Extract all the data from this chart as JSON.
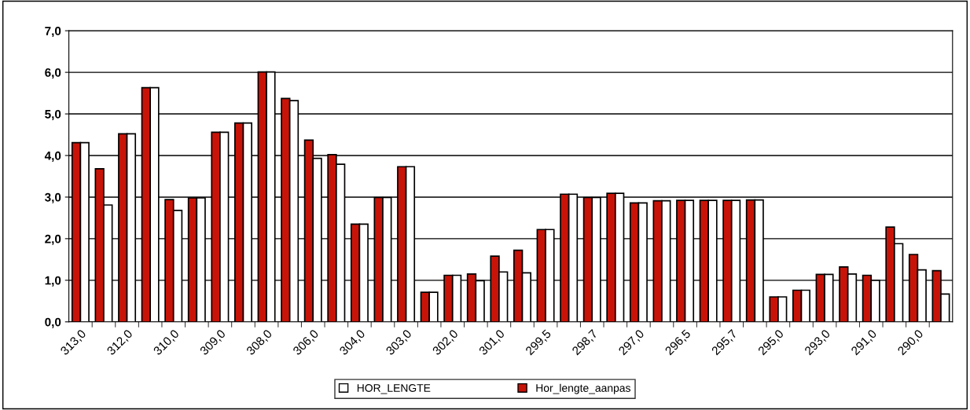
{
  "chart_data": {
    "type": "bar",
    "categories": [
      "313,0",
      null,
      "312,0",
      null,
      "310,0",
      null,
      "309,0",
      null,
      "308,0",
      null,
      "306,0",
      null,
      "304,0",
      null,
      "303,0",
      null,
      "302,0",
      null,
      "301,0",
      null,
      "299,5",
      null,
      "298,7",
      null,
      "297,0",
      null,
      "296,5",
      null,
      "295,7",
      null,
      "295,0",
      null,
      "293,0",
      null,
      "291,0",
      null,
      "290,0",
      null
    ],
    "series": [
      {
        "name": "Hor_lengte_aanpas",
        "color": "#c81408",
        "values": [
          4.31,
          3.68,
          4.52,
          5.63,
          2.94,
          2.98,
          4.56,
          4.78,
          6.01,
          5.37,
          4.37,
          4.02,
          2.35,
          2.99,
          3.73,
          0.71,
          1.12,
          1.15,
          1.58,
          1.72,
          2.22,
          3.07,
          2.99,
          3.09,
          2.86,
          2.91,
          2.92,
          2.92,
          2.92,
          2.93,
          0.6,
          0.76,
          1.14,
          1.32,
          1.12,
          2.28,
          1.62,
          1.23
        ]
      },
      {
        "name": "HOR_LENGTE",
        "color": "#ffffff",
        "values": [
          4.31,
          2.81,
          4.52,
          5.63,
          2.68,
          2.98,
          4.56,
          4.78,
          6.01,
          5.32,
          3.93,
          3.79,
          2.35,
          2.99,
          3.73,
          0.71,
          1.12,
          0.99,
          1.2,
          1.18,
          2.22,
          3.07,
          2.99,
          3.09,
          2.86,
          2.91,
          2.92,
          2.92,
          2.92,
          2.93,
          0.6,
          0.76,
          1.14,
          1.15,
          1.0,
          1.88,
          1.25,
          0.67
        ]
      }
    ],
    "ylim": [
      0,
      7
    ],
    "yticks": [
      {
        "value": 0,
        "label": "0,0"
      },
      {
        "value": 1,
        "label": "1,0"
      },
      {
        "value": 2,
        "label": "2,0"
      },
      {
        "value": 3,
        "label": "3,0"
      },
      {
        "value": 4,
        "label": "4,0"
      },
      {
        "value": 5,
        "label": "5,0"
      },
      {
        "value": 6,
        "label": "6,0"
      },
      {
        "value": 7,
        "label": "7,0"
      }
    ],
    "grid": "y",
    "legend": "bottom"
  }
}
